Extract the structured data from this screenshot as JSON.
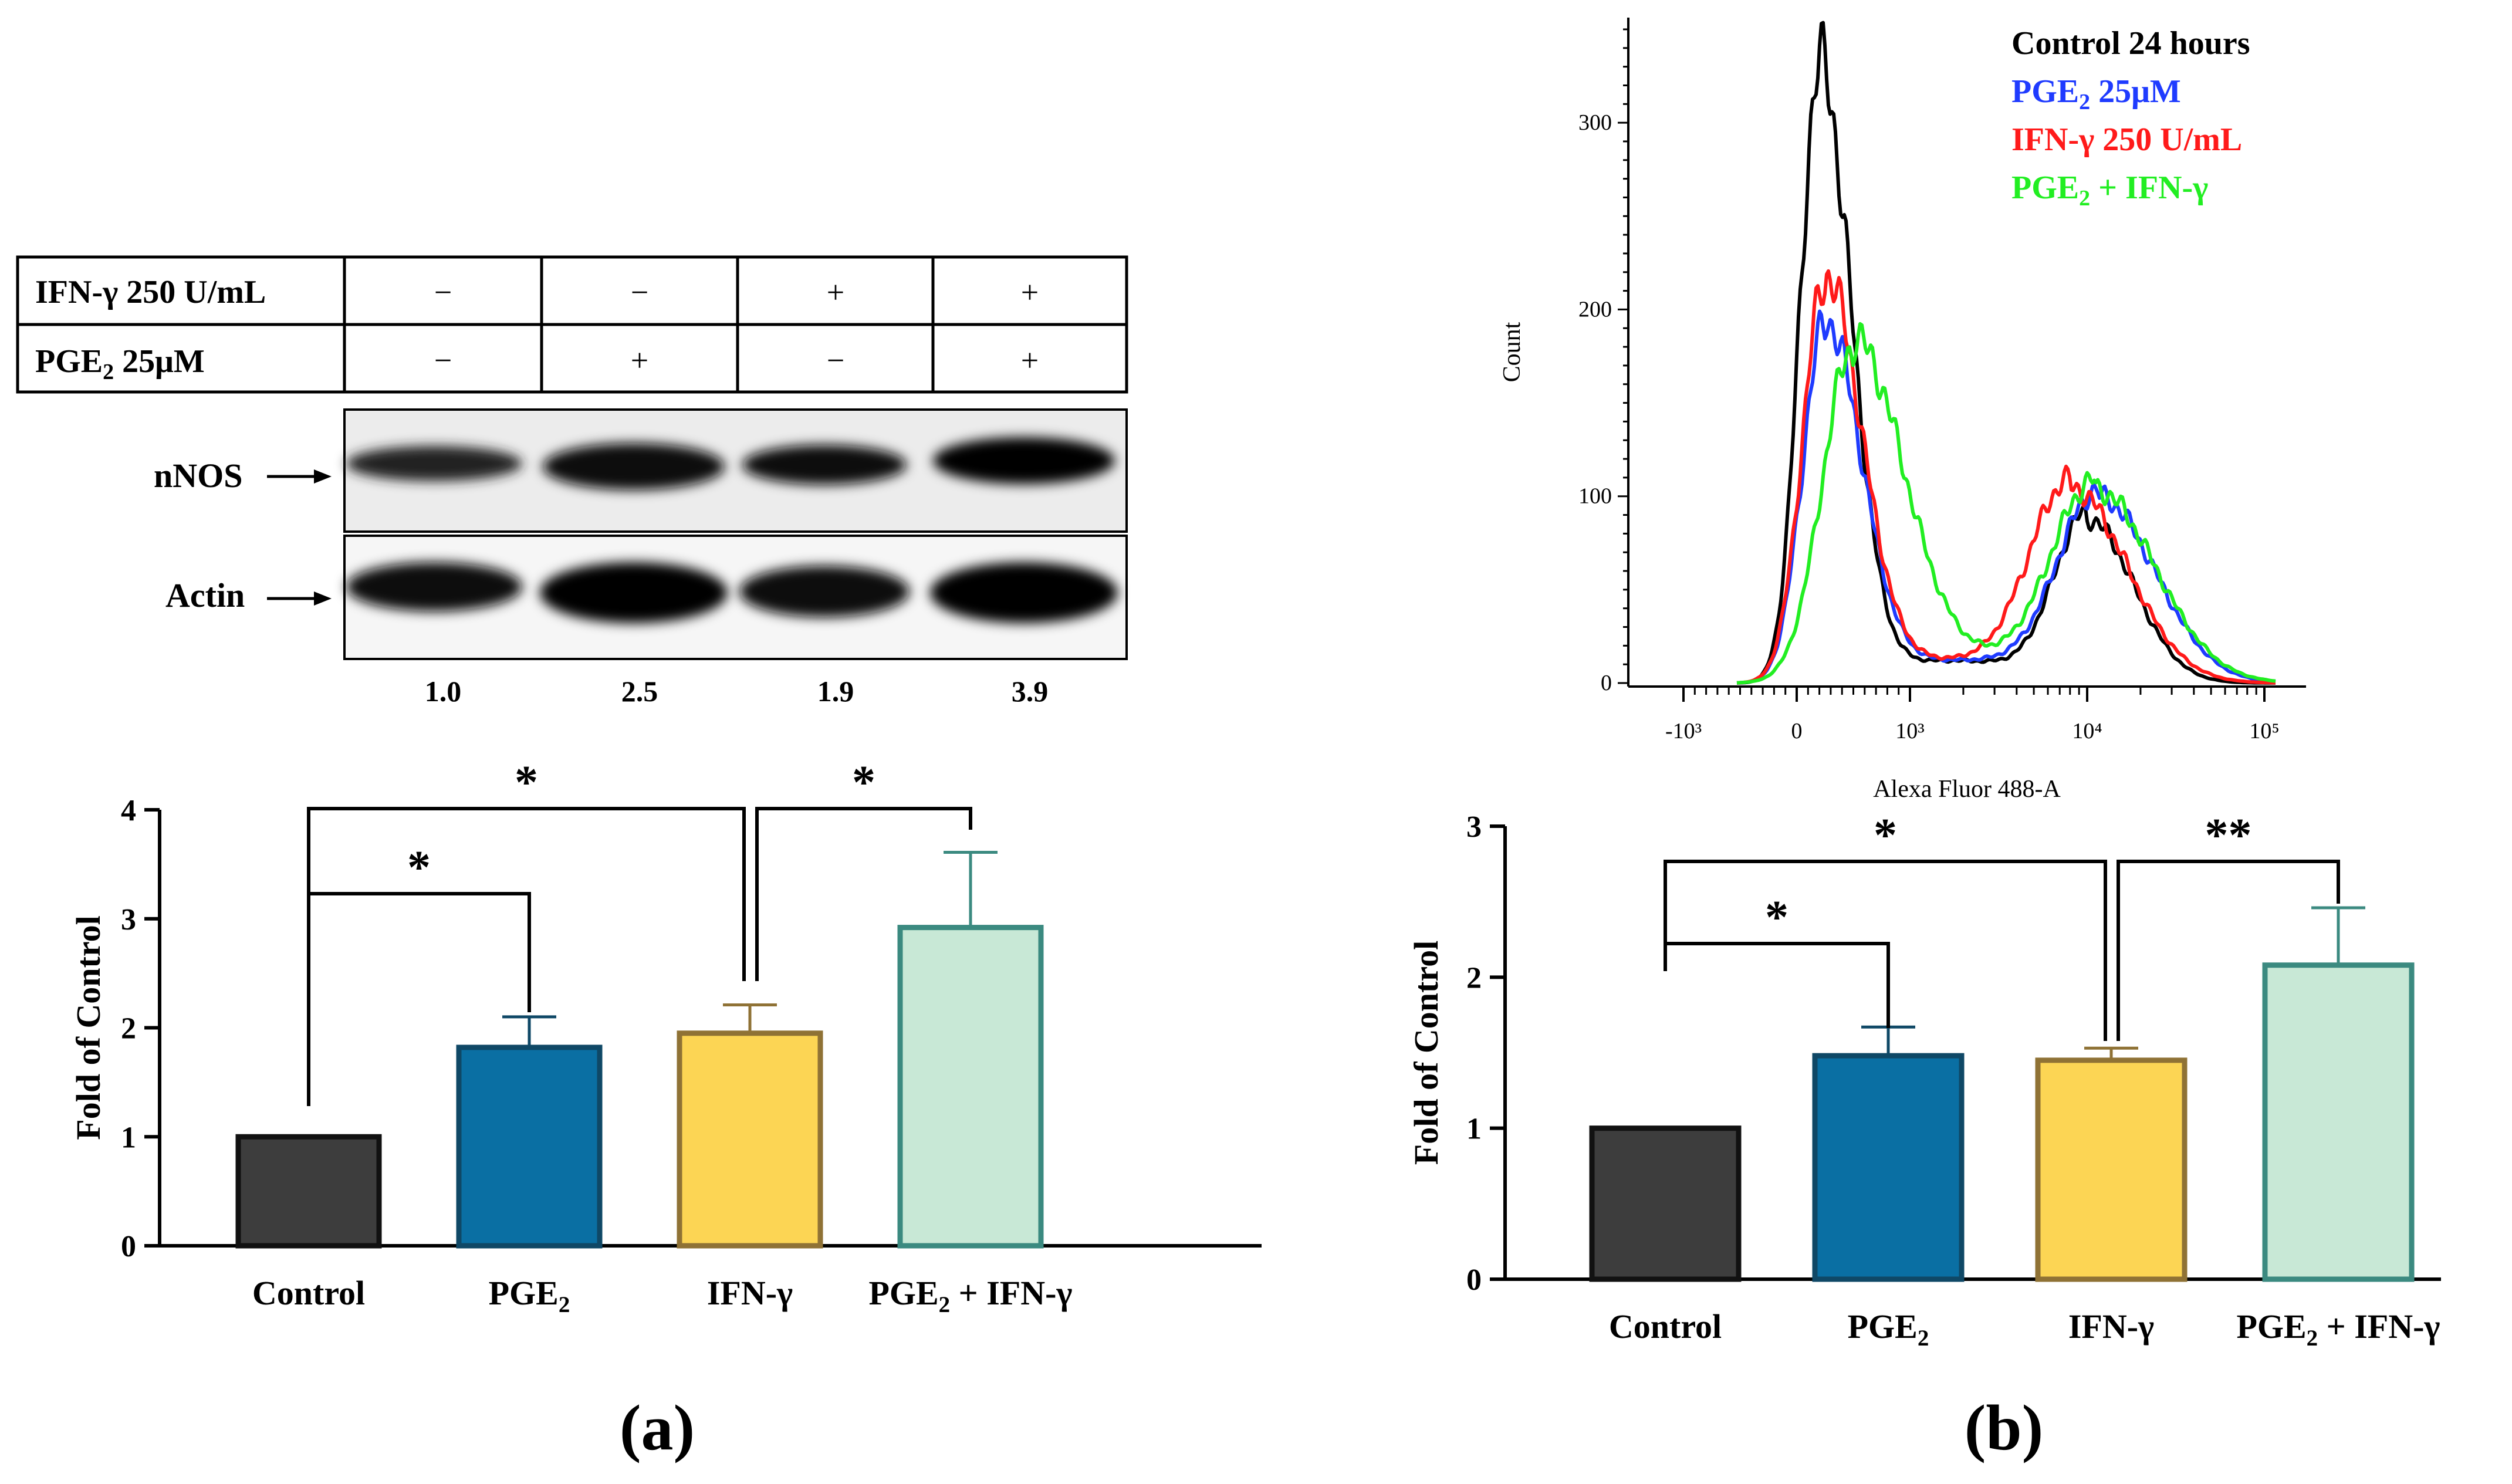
{
  "figure_a": {
    "panel_label": "(a)",
    "blot": {
      "row_labels": [
        "IFN-γ 250 U/mL",
        "PGE2 25μM"
      ],
      "conditions": [
        {
          "ifn": "−",
          "pge": "−"
        },
        {
          "ifn": "−",
          "pge": "+"
        },
        {
          "ifn": "+",
          "pge": "−"
        },
        {
          "ifn": "+",
          "pge": "+"
        }
      ],
      "band_labels": [
        "nNOS",
        "Actin"
      ],
      "quantification": [
        "1.0",
        "2.5",
        "1.9",
        "3.9"
      ]
    }
  },
  "figure_b": {
    "panel_label": "(b)",
    "histogram_legend": [
      "Control 24 hours",
      "PGE2 25μM",
      "IFN-γ 250 U/mL",
      "PGE2 + IFN-γ"
    ]
  },
  "colors": {
    "control": "#3d3d3d",
    "pge2": "#0a6fa3",
    "ifn": "#fcd554",
    "combo": "#c8e8d6",
    "control_edge": "#111111",
    "pge2_edge": "#0f4866",
    "ifn_edge": "#8f7235",
    "combo_edge": "#3b8a80",
    "hist_black": "#000000",
    "hist_blue": "#1f3bff",
    "hist_red": "#ff1a1a",
    "hist_green": "#22ee22"
  },
  "chart_data": [
    {
      "type": "bar",
      "panel": "a",
      "categories": [
        "Control",
        "PGE2",
        "IFN-γ",
        "PGE2 + IFN-γ"
      ],
      "values": [
        1.0,
        1.82,
        1.95,
        2.92
      ],
      "errors": [
        0,
        0.28,
        0.26,
        0.69
      ],
      "ylabel": "Fold of Control",
      "ylim": [
        0,
        4
      ],
      "yticks": [
        "0",
        "1",
        "2",
        "3",
        "4"
      ],
      "significance": [
        {
          "from": "Control",
          "to": "PGE2",
          "label": "*"
        },
        {
          "from": "Control",
          "to": "IFN-γ",
          "label": "*"
        },
        {
          "from": "IFN-γ",
          "to": "PGE2 + IFN-γ",
          "label": "*"
        }
      ]
    },
    {
      "type": "line",
      "panel": "b-histogram",
      "xlabel": "Alexa Fluor 488-A",
      "ylabel": "Count",
      "ylim": [
        0,
        350
      ],
      "yticks": [
        "0",
        "100",
        "200",
        "300"
      ],
      "x_scale": "biexponential",
      "xticks": [
        "-10³",
        "0",
        "10³",
        "10⁴",
        "10⁵"
      ],
      "series": [
        {
          "name": "Control 24 hours",
          "peaks": [
            {
              "x": 200,
              "y": 330
            },
            {
              "x": 10000,
              "y": 88
            }
          ]
        },
        {
          "name": "PGE2 25μM",
          "peaks": [
            {
              "x": 250,
              "y": 192
            },
            {
              "x": 11500,
              "y": 100
            }
          ]
        },
        {
          "name": "IFN-γ 250 U/mL",
          "peaks": [
            {
              "x": 250,
              "y": 215
            },
            {
              "x": 8000,
              "y": 105
            }
          ]
        },
        {
          "name": "PGE2 + IFN-γ",
          "peaks": [
            {
              "x": 500,
              "y": 180
            },
            {
              "x": 11000,
              "y": 104
            }
          ]
        }
      ]
    },
    {
      "type": "bar",
      "panel": "b",
      "categories": [
        "Control",
        "PGE2",
        "IFN-γ",
        "PGE2 + IFN-γ"
      ],
      "values": [
        1.0,
        1.48,
        1.45,
        2.08
      ],
      "errors": [
        0,
        0.19,
        0.08,
        0.38
      ],
      "ylabel": "Fold of Control",
      "ylim": [
        0,
        3
      ],
      "yticks": [
        "0",
        "1",
        "2",
        "3"
      ],
      "significance": [
        {
          "from": "Control",
          "to": "PGE2",
          "label": "*"
        },
        {
          "from": "Control",
          "to": "IFN-γ",
          "label": "*"
        },
        {
          "from": "IFN-γ",
          "to": "PGE2 + IFN-γ",
          "label": "**"
        }
      ]
    }
  ]
}
